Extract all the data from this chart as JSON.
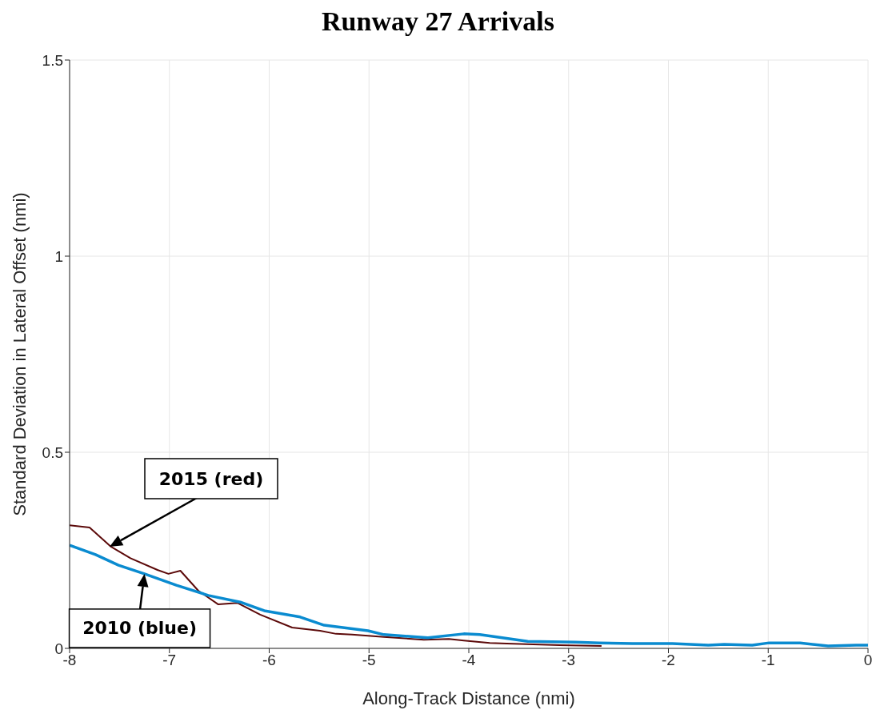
{
  "chart_data": {
    "type": "line",
    "title": "Runway 27 Arrivals",
    "xlabel": "Along-Track Distance (nmi)",
    "ylabel": "Standard Deviation in Lateral Offset (nmi)",
    "xlim": [
      -8,
      0
    ],
    "xticks": [
      -8,
      -7,
      -6,
      -5,
      -4,
      -3,
      -2,
      -1,
      0
    ],
    "ylim": [
      0,
      1.5
    ],
    "yticks": [
      0,
      0.5,
      1,
      1.5
    ],
    "grid": true,
    "marker": "none",
    "line_style": "solid",
    "annotations": [
      "2015 (red)",
      {
        "text": "2010 (blue)",
        "x": -7.25,
        "y": 0.19
      }
    ],
    "series": [
      {
        "color": "#5c0a0a",
        "x": [
          -8,
          -7.8,
          -7.59,
          -7.39,
          -7.12,
          -7.01,
          -6.89,
          -6.71,
          -6.51,
          -6.32,
          -6.09,
          -5.77,
          -5.49,
          -5.33,
          -5.17,
          -4.85,
          -4.45,
          -4.2,
          -4.05,
          -3.79,
          -3.62,
          -3.09,
          -2.67
        ],
        "values": [
          0.314,
          0.308,
          0.26,
          0.23,
          0.2,
          0.19,
          0.198,
          0.147,
          0.112,
          0.116,
          0.086,
          0.053,
          0.045,
          0.037,
          0.035,
          0.029,
          0.022,
          0.024,
          0.02,
          0.014,
          0.012,
          0.008,
          0.006
        ]
      },
      {
        "color": "#0a8bd0",
        "x": [
          -8,
          -7.74,
          -7.51,
          -7.25,
          -6.93,
          -6.61,
          -6.29,
          -6.05,
          -5.69,
          -5.45,
          -5.01,
          -4.85,
          -4.41,
          -4.05,
          -3.89,
          -3.41,
          -2.93,
          -2.69,
          -2.36,
          -1.96,
          -1.6,
          -1.44,
          -1.16,
          -0.99,
          -0.68,
          -0.4,
          -0.12,
          0
        ],
        "values": [
          0.263,
          0.239,
          0.212,
          0.19,
          0.161,
          0.135,
          0.118,
          0.096,
          0.08,
          0.059,
          0.045,
          0.035,
          0.027,
          0.037,
          0.035,
          0.018,
          0.016,
          0.014,
          0.012,
          0.012,
          0.008,
          0.01,
          0.008,
          0.014,
          0.014,
          0.006,
          0.008,
          0.008
        ]
      }
    ]
  }
}
